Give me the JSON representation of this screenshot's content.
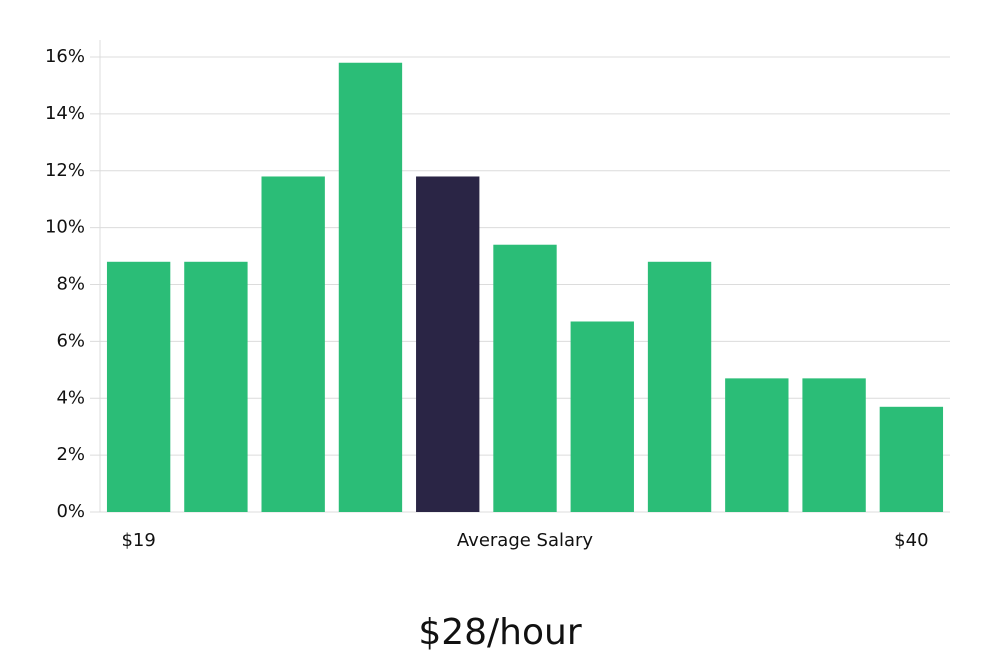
{
  "chart_data": {
    "type": "bar",
    "subtitle": "$28/hour",
    "categories": [
      "$19",
      null,
      null,
      null,
      null,
      "Average Salary",
      null,
      null,
      null,
      null,
      "$40"
    ],
    "values": [
      8.8,
      8.8,
      11.8,
      15.8,
      11.8,
      9.4,
      6.7,
      8.8,
      4.7,
      4.7,
      3.7
    ],
    "colors": [
      "#2bbd77",
      "#2bbd77",
      "#2bbd77",
      "#2bbd77",
      "#2a2545",
      "#2bbd77",
      "#2bbd77",
      "#2bbd77",
      "#2bbd77",
      "#2bbd77",
      "#2bbd77"
    ],
    "ylim": [
      0,
      16.6
    ],
    "yticks": [
      {
        "value": 0,
        "label": "0%"
      },
      {
        "value": 2,
        "label": "2%"
      },
      {
        "value": 4,
        "label": "4%"
      },
      {
        "value": 6,
        "label": "6%"
      },
      {
        "value": 8,
        "label": "8%"
      },
      {
        "value": 10,
        "label": "10%"
      },
      {
        "value": 12,
        "label": "12%"
      },
      {
        "value": 14,
        "label": "14%"
      },
      {
        "value": 16,
        "label": "16%"
      }
    ],
    "grid": true
  }
}
